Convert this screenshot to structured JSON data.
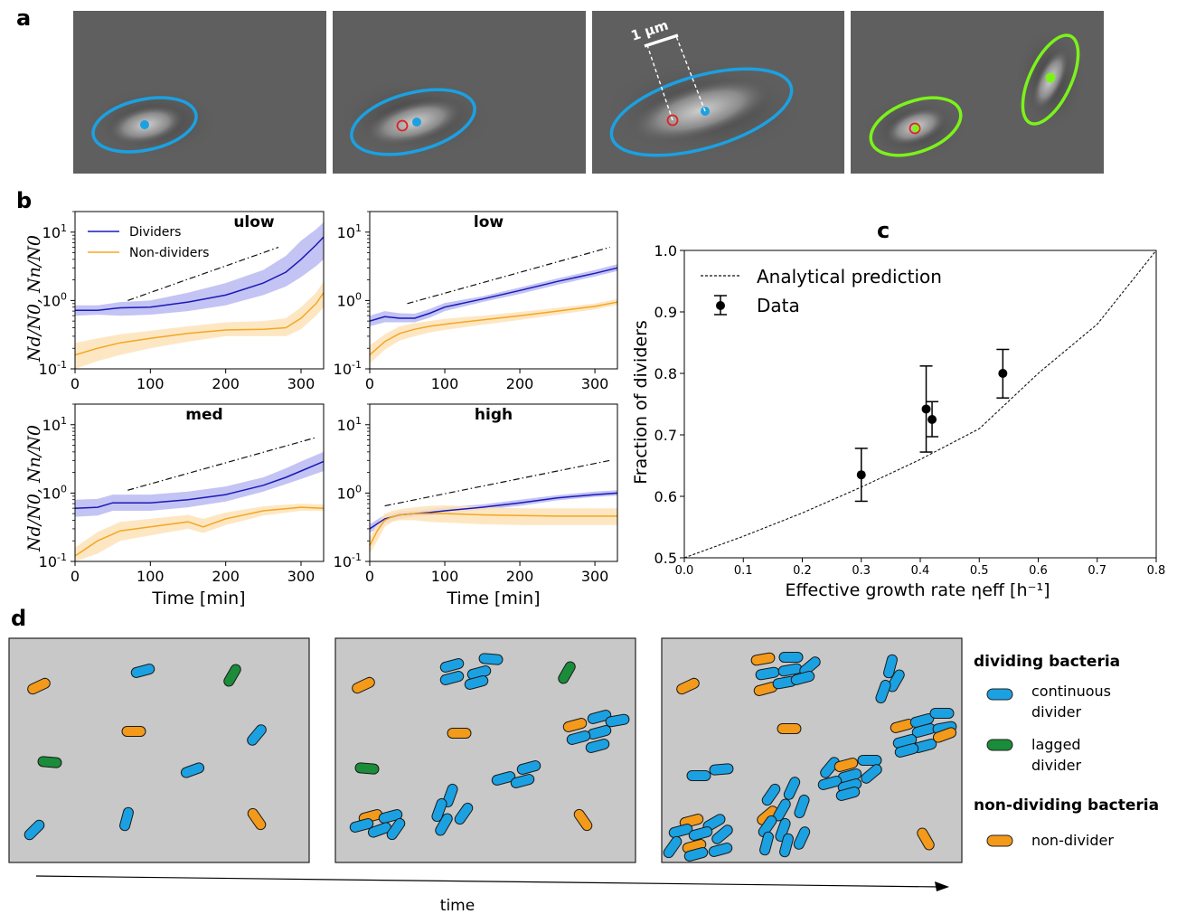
{
  "panel_labels": {
    "a": "a",
    "b": "b",
    "c": "c",
    "d": "d"
  },
  "panel_a": {
    "scale_bar_label": "1 μm",
    "colors": {
      "continuous": "#1ba1e2",
      "lagged": "#7cf21b",
      "origin": "#e02020"
    }
  },
  "panel_b": {
    "legend": {
      "dividers": "Dividers",
      "non_dividers": "Non-dividers"
    },
    "ylabel": "Nd/N0, Nn/N0",
    "xlabel": "Time [min]",
    "colors": {
      "dividers": "#1a1ab8",
      "non_dividers": "#f5a623",
      "dividers_band": "#b8b8f2",
      "non_dividers_band": "#fde3b8"
    }
  },
  "panel_c": {
    "legend": {
      "prediction": "Analytical prediction",
      "data": "Data"
    },
    "ylabel": "Fraction of dividers",
    "xlabel": "Effective growth rate ηeff [h⁻¹]"
  },
  "panel_d": {
    "legend_title_dividing": "dividing bacteria",
    "legend_continuous": "continuous divider",
    "legend_lagged": "lagged divider",
    "legend_title_nondividing": "non-dividing bacteria",
    "legend_nondivider": "non-divider",
    "time_label": "time",
    "colors": {
      "continuous": "#1ba1e2",
      "lagged": "#1a8c3a",
      "nondivider": "#f39a1a",
      "background": "#c8c8c8"
    }
  },
  "chart_data": [
    {
      "type": "line",
      "title": "ulow",
      "xlim": [
        0,
        330
      ],
      "ylim": [
        0.1,
        20
      ],
      "yscale": "log",
      "xticks": [
        0,
        100,
        200,
        300
      ],
      "yticks": [
        "10^-1",
        "10^0",
        "10^1"
      ],
      "series": [
        {
          "name": "Dividers",
          "x": [
            0,
            30,
            60,
            100,
            150,
            200,
            250,
            280,
            300,
            320,
            330
          ],
          "y": [
            0.72,
            0.72,
            0.78,
            0.8,
            0.95,
            1.2,
            1.8,
            2.6,
            4.0,
            6.5,
            8.5
          ],
          "lower": [
            0.6,
            0.62,
            0.6,
            0.62,
            0.7,
            0.85,
            1.2,
            1.6,
            2.2,
            3.2,
            4.0
          ],
          "upper": [
            0.85,
            0.85,
            0.95,
            1.0,
            1.3,
            1.8,
            2.8,
            4.5,
            7.5,
            11,
            14
          ]
        },
        {
          "name": "Non-dividers",
          "x": [
            0,
            30,
            60,
            100,
            150,
            200,
            250,
            280,
            300,
            320,
            330
          ],
          "y": [
            0.16,
            0.2,
            0.24,
            0.28,
            0.33,
            0.37,
            0.38,
            0.4,
            0.55,
            0.9,
            1.3
          ],
          "lower": [
            0.1,
            0.13,
            0.16,
            0.2,
            0.25,
            0.3,
            0.3,
            0.3,
            0.38,
            0.6,
            0.8
          ],
          "upper": [
            0.24,
            0.28,
            0.32,
            0.36,
            0.42,
            0.48,
            0.5,
            0.55,
            0.8,
            1.3,
            1.9
          ]
        }
      ],
      "guide_line": {
        "x": [
          70,
          270
        ],
        "y": [
          1.0,
          6.0
        ]
      }
    },
    {
      "type": "line",
      "title": "low",
      "xlim": [
        0,
        330
      ],
      "ylim": [
        0.1,
        20
      ],
      "yscale": "log",
      "xticks": [
        0,
        100,
        200,
        300
      ],
      "yticks": [
        "10^-1",
        "10^0",
        "10^1"
      ],
      "series": [
        {
          "name": "Dividers",
          "x": [
            0,
            20,
            40,
            60,
            80,
            100,
            150,
            200,
            250,
            300,
            330
          ],
          "y": [
            0.5,
            0.58,
            0.55,
            0.55,
            0.65,
            0.8,
            1.05,
            1.4,
            1.9,
            2.5,
            3.0
          ],
          "lower": [
            0.42,
            0.48,
            0.48,
            0.48,
            0.56,
            0.7,
            0.95,
            1.25,
            1.7,
            2.25,
            2.7
          ],
          "upper": [
            0.6,
            0.7,
            0.65,
            0.64,
            0.75,
            0.92,
            1.15,
            1.55,
            2.1,
            2.8,
            3.4
          ]
        },
        {
          "name": "Non-dividers",
          "x": [
            0,
            20,
            40,
            60,
            80,
            100,
            150,
            200,
            250,
            300,
            330
          ],
          "y": [
            0.16,
            0.25,
            0.33,
            0.38,
            0.42,
            0.45,
            0.52,
            0.6,
            0.7,
            0.82,
            0.95
          ],
          "lower": [
            0.12,
            0.19,
            0.26,
            0.3,
            0.34,
            0.37,
            0.44,
            0.52,
            0.62,
            0.74,
            0.86
          ],
          "upper": [
            0.22,
            0.32,
            0.42,
            0.47,
            0.5,
            0.54,
            0.6,
            0.68,
            0.78,
            0.9,
            1.05
          ]
        }
      ],
      "guide_line": {
        "x": [
          50,
          320
        ],
        "y": [
          0.9,
          6.0
        ]
      }
    },
    {
      "type": "line",
      "title": "med",
      "xlim": [
        0,
        330
      ],
      "ylim": [
        0.1,
        20
      ],
      "yscale": "log",
      "xticks": [
        0,
        100,
        200,
        300
      ],
      "yticks": [
        "10^-1",
        "10^0",
        "10^1"
      ],
      "series": [
        {
          "name": "Dividers",
          "x": [
            0,
            30,
            50,
            100,
            150,
            200,
            250,
            280,
            300,
            330
          ],
          "y": [
            0.6,
            0.62,
            0.72,
            0.72,
            0.8,
            0.95,
            1.3,
            1.7,
            2.1,
            2.9
          ],
          "lower": [
            0.45,
            0.47,
            0.55,
            0.55,
            0.62,
            0.75,
            1.05,
            1.35,
            1.6,
            2.1
          ],
          "upper": [
            0.8,
            0.82,
            0.95,
            0.95,
            1.05,
            1.25,
            1.7,
            2.3,
            2.9,
            4.0
          ]
        },
        {
          "name": "Non-dividers",
          "x": [
            0,
            30,
            60,
            100,
            150,
            170,
            200,
            250,
            300,
            330
          ],
          "y": [
            0.12,
            0.2,
            0.28,
            0.32,
            0.38,
            0.32,
            0.42,
            0.55,
            0.62,
            0.6
          ],
          "lower": [
            0.1,
            0.13,
            0.2,
            0.24,
            0.3,
            0.26,
            0.34,
            0.47,
            0.55,
            0.55
          ],
          "upper": [
            0.16,
            0.27,
            0.38,
            0.42,
            0.48,
            0.42,
            0.52,
            0.64,
            0.7,
            0.68
          ]
        }
      ],
      "guide_line": {
        "x": [
          70,
          320
        ],
        "y": [
          1.1,
          6.5
        ]
      }
    },
    {
      "type": "line",
      "title": "high",
      "xlim": [
        0,
        330
      ],
      "ylim": [
        0.1,
        20
      ],
      "yscale": "log",
      "xticks": [
        0,
        100,
        200,
        300
      ],
      "yticks": [
        "10^-1",
        "10^0",
        "10^1"
      ],
      "series": [
        {
          "name": "Dividers",
          "x": [
            0,
            20,
            40,
            60,
            80,
            100,
            150,
            200,
            250,
            300,
            330
          ],
          "y": [
            0.3,
            0.42,
            0.48,
            0.5,
            0.52,
            0.55,
            0.62,
            0.72,
            0.85,
            0.95,
            1.0
          ],
          "lower": [
            0.26,
            0.36,
            0.42,
            0.45,
            0.47,
            0.5,
            0.57,
            0.65,
            0.78,
            0.88,
            0.92
          ],
          "upper": [
            0.35,
            0.48,
            0.54,
            0.56,
            0.58,
            0.62,
            0.68,
            0.8,
            0.93,
            1.05,
            1.1
          ]
        },
        {
          "name": "Non-dividers",
          "x": [
            0,
            10,
            20,
            30,
            40,
            60,
            80,
            100,
            150,
            200,
            250,
            300,
            330
          ],
          "y": [
            0.17,
            0.28,
            0.4,
            0.45,
            0.48,
            0.5,
            0.5,
            0.5,
            0.48,
            0.47,
            0.46,
            0.46,
            0.46
          ],
          "lower": [
            0.13,
            0.2,
            0.32,
            0.38,
            0.4,
            0.4,
            0.38,
            0.37,
            0.35,
            0.34,
            0.34,
            0.34,
            0.34
          ],
          "upper": [
            0.22,
            0.36,
            0.5,
            0.55,
            0.58,
            0.62,
            0.65,
            0.66,
            0.63,
            0.6,
            0.6,
            0.6,
            0.6
          ]
        }
      ],
      "guide_line": {
        "x": [
          20,
          320
        ],
        "y": [
          0.65,
          3.0
        ]
      }
    },
    {
      "type": "scatter",
      "xlabel": "Effective growth rate ηeff [h⁻¹]",
      "ylabel": "Fraction of dividers",
      "xlim": [
        0.0,
        0.8
      ],
      "ylim": [
        0.5,
        1.0
      ],
      "xticks": [
        0.0,
        0.1,
        0.2,
        0.3,
        0.4,
        0.5,
        0.6,
        0.7,
        0.8
      ],
      "yticks": [
        0.5,
        0.6,
        0.7,
        0.8,
        0.9,
        1.0
      ],
      "series": [
        {
          "name": "Data",
          "x": [
            0.3,
            0.41,
            0.42,
            0.54
          ],
          "y": [
            0.635,
            0.742,
            0.725,
            0.8
          ],
          "yerr_low": [
            0.592,
            0.672,
            0.697,
            0.76
          ],
          "yerr_high": [
            0.678,
            0.812,
            0.754,
            0.839
          ]
        },
        {
          "name": "Analytical prediction",
          "x": [
            0.0,
            0.1,
            0.2,
            0.3,
            0.4,
            0.5,
            0.6,
            0.7,
            0.8
          ],
          "y": [
            0.5,
            0.535,
            0.573,
            0.615,
            0.66,
            0.71,
            0.8,
            0.88,
            1.0
          ]
        }
      ]
    }
  ]
}
